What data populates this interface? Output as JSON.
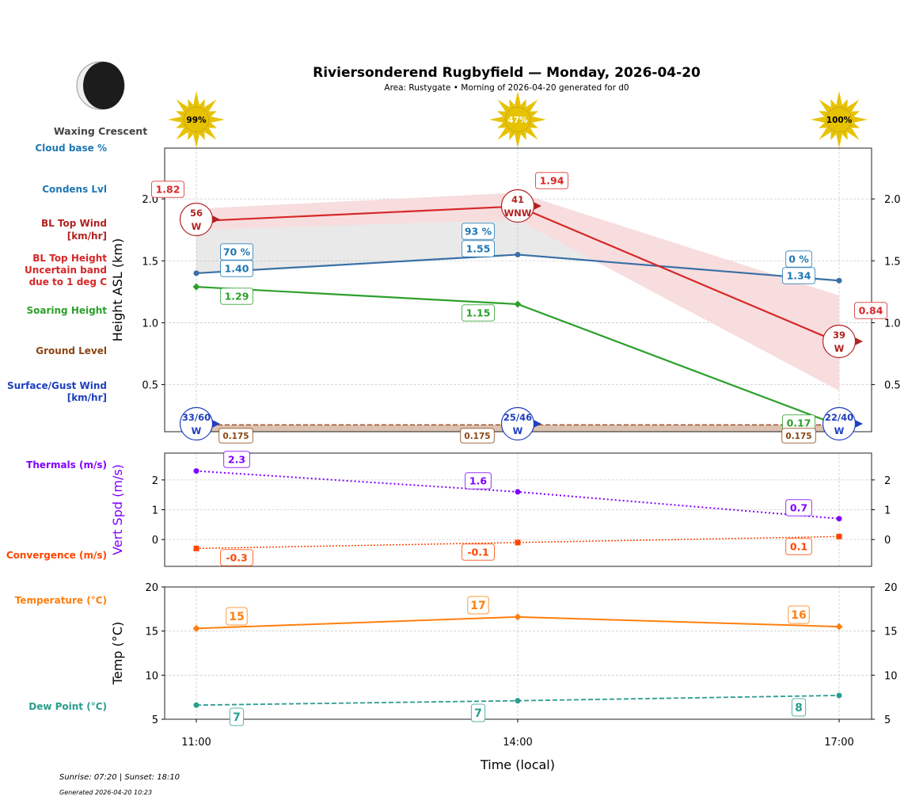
{
  "title": "Riviersonderend Rugbyfield — Monday, 2026-04-20",
  "subtitle": "Area: Rustygate • Morning of 2026-04-20 generated for d0",
  "moon": {
    "phase": "Waxing Crescent",
    "icon": "moon-waxing-crescent-icon"
  },
  "sun_icons": [
    {
      "label": "99%"
    },
    {
      "label": "47%"
    },
    {
      "label": "100%"
    }
  ],
  "footer": {
    "sun": "Sunrise: 07:20 | Sunset: 18:10",
    "generated": "Generated 2026-04-20 10:23"
  },
  "left_labels": {
    "cloud_base": "Cloud base %",
    "condens": "Condens Lvl",
    "bl_wind_1": "BL Top Wind",
    "bl_wind_2": "[km/hr]",
    "bl_top_1": "BL Top Height",
    "bl_top_2": "Uncertain band",
    "bl_top_3": "due to 1 deg C",
    "soaring": "Soaring Height",
    "ground": "Ground Level",
    "surface_1": "Surface/Gust Wind",
    "surface_2": "[km/hr]",
    "thermals": "Thermals (m/s)",
    "convergence": "Convergence (m/s)",
    "temperature": "Temperature (°C)",
    "dewpoint": "Dew Point (°C)"
  },
  "colors": {
    "cloud": "#1f77b4",
    "bl": "#d62728",
    "bl_band": "#f7d9da",
    "grey_band": "#e3e3e3",
    "soaring": "#2ca02c",
    "ground": "#8b4513",
    "ground_fill": "#dcc2b0",
    "surface": "#1f3fbf",
    "thermal": "#8000ff",
    "convergence": "#ff4500",
    "temp": "#ff7f0e",
    "dew": "#2a9d8f",
    "sun": "#e6c200"
  },
  "chart_data": [
    {
      "type": "line",
      "ylabel": "Height ASL (km)",
      "ylim": [
        0.12,
        2.41
      ],
      "yticks": [
        "0.5",
        "1.0",
        "1.5",
        "2.0"
      ],
      "grid": true,
      "x": [
        "11:00",
        "14:00",
        "17:00"
      ],
      "series": {
        "cloud_base_pct": [
          "70 %",
          "93 %",
          "0 %"
        ],
        "condensation_level": [
          1.4,
          1.55,
          1.34
        ],
        "bl_top": [
          1.82,
          1.94,
          0.84
        ],
        "bl_band_upper": [
          1.92,
          2.05,
          1.22
        ],
        "bl_band_lower": [
          1.75,
          1.83,
          0.45
        ],
        "soaring_height": [
          1.29,
          1.15,
          0.17
        ],
        "ground_level": [
          0.175,
          0.175,
          0.175
        ],
        "bl_wind": [
          {
            "speed": "56",
            "dir": "W"
          },
          {
            "speed": "41",
            "dir": "WNW"
          },
          {
            "speed": "39",
            "dir": "W"
          }
        ],
        "surface_wind": [
          {
            "speed": "33/60",
            "dir": "W"
          },
          {
            "speed": "25/46",
            "dir": "W"
          },
          {
            "speed": "22/40",
            "dir": "W"
          }
        ]
      }
    },
    {
      "type": "line",
      "ylabel": "Vert Spd (m/s)",
      "ylim": [
        -0.9,
        2.9
      ],
      "yticks": [
        "0",
        "1",
        "2"
      ],
      "grid": true,
      "x": [
        "11:00",
        "14:00",
        "17:00"
      ],
      "series": {
        "thermals": [
          2.3,
          1.6,
          0.7
        ],
        "convergence": [
          -0.3,
          -0.1,
          0.1
        ]
      }
    },
    {
      "type": "line",
      "xlabel": "Time (local)",
      "ylabel": "Temp (°C)",
      "ylim": [
        5,
        20
      ],
      "yticks": [
        "5",
        "10",
        "15",
        "20"
      ],
      "grid": true,
      "x": [
        "11:00",
        "14:00",
        "17:00"
      ],
      "series": {
        "temperature": [
          15.3,
          16.6,
          15.5
        ],
        "temperature_labels": [
          "15",
          "17",
          "16"
        ],
        "dewpoint": [
          6.6,
          7.1,
          7.7
        ],
        "dewpoint_labels": [
          "7",
          "7",
          "8"
        ]
      }
    }
  ]
}
